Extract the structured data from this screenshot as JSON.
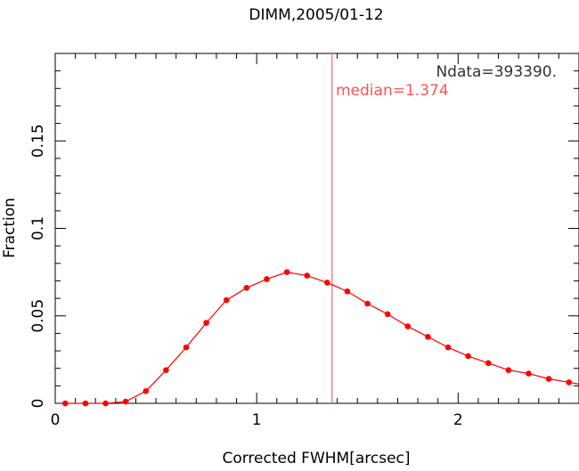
{
  "chart_data": {
    "type": "line",
    "title": "DIMM,2005/01-12",
    "xlabel": "Corrected FWHM[arcsec]",
    "ylabel": "Fraction",
    "xlim": [
      0,
      2.6
    ],
    "ylim": [
      0,
      0.2
    ],
    "xticks": [
      {
        "value": 0,
        "label": "0"
      },
      {
        "value": 1,
        "label": "1"
      },
      {
        "value": 2,
        "label": "2"
      }
    ],
    "yticks": [
      {
        "value": 0,
        "label": "0"
      },
      {
        "value": 0.05,
        "label": "0.05"
      },
      {
        "value": 0.1,
        "label": "0.1"
      },
      {
        "value": 0.15,
        "label": "0.15"
      }
    ],
    "grid": false,
    "series": [
      {
        "color": "#ff0000",
        "x": [
          0.05,
          0.15,
          0.25,
          0.35,
          0.45,
          0.55,
          0.65,
          0.75,
          0.85,
          0.95,
          1.05,
          1.15,
          1.25,
          1.35,
          1.45,
          1.55,
          1.65,
          1.75,
          1.85,
          1.95,
          2.05,
          2.15,
          2.25,
          2.35,
          2.45,
          2.55
        ],
        "y": [
          0.0,
          0.0,
          0.0,
          0.001,
          0.007,
          0.019,
          0.032,
          0.046,
          0.059,
          0.066,
          0.071,
          0.075,
          0.073,
          0.069,
          0.064,
          0.057,
          0.051,
          0.044,
          0.038,
          0.032,
          0.027,
          0.023,
          0.019,
          0.017,
          0.014,
          0.012
        ]
      }
    ],
    "median_line": {
      "x": 1.374,
      "color": "#ff6666"
    },
    "annotations": {
      "ndata": "Ndata=393390.",
      "median": "median=1.374"
    }
  }
}
